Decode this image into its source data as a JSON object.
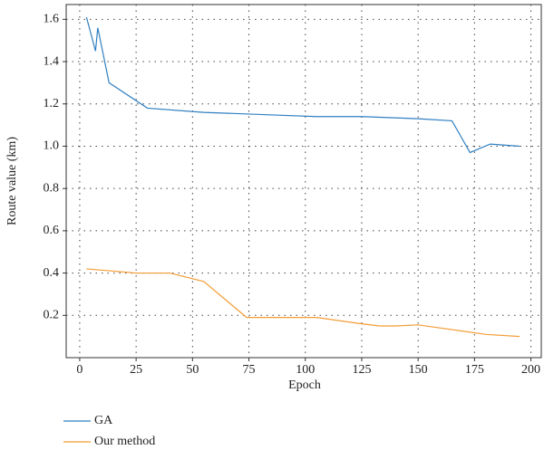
{
  "chart_data": {
    "type": "line",
    "x_label": "Epoch",
    "y_label": "Route value (km)",
    "xlim": [
      -6,
      205
    ],
    "ylim": [
      0,
      1.67
    ],
    "xticks": [
      0,
      25,
      50,
      75,
      100,
      125,
      150,
      175,
      200
    ],
    "yticks": [
      0.2,
      0.4,
      0.6,
      0.8,
      {
        "value": 1,
        "label": "1.0"
      },
      1.2,
      1.4,
      1.6
    ],
    "grid": true,
    "series": [
      {
        "name": "GA",
        "color": "#2f7fc1",
        "x": [
          3,
          7,
          8,
          13,
          30,
          55,
          80,
          105,
          125,
          150,
          165,
          173,
          182,
          195
        ],
        "values": [
          1.61,
          1.45,
          1.56,
          1.3,
          1.18,
          1.16,
          1.15,
          1.14,
          1.14,
          1.13,
          1.12,
          0.97,
          1.01,
          1.0
        ]
      },
      {
        "name": "Our method",
        "color": "#f39c35",
        "x": [
          3,
          25,
          40,
          55,
          74,
          105,
          125,
          133,
          140,
          150,
          160,
          180,
          195
        ],
        "values": [
          0.42,
          0.4,
          0.4,
          0.36,
          0.19,
          0.19,
          0.16,
          0.15,
          0.15,
          0.155,
          0.14,
          0.11,
          0.1
        ]
      }
    ]
  }
}
